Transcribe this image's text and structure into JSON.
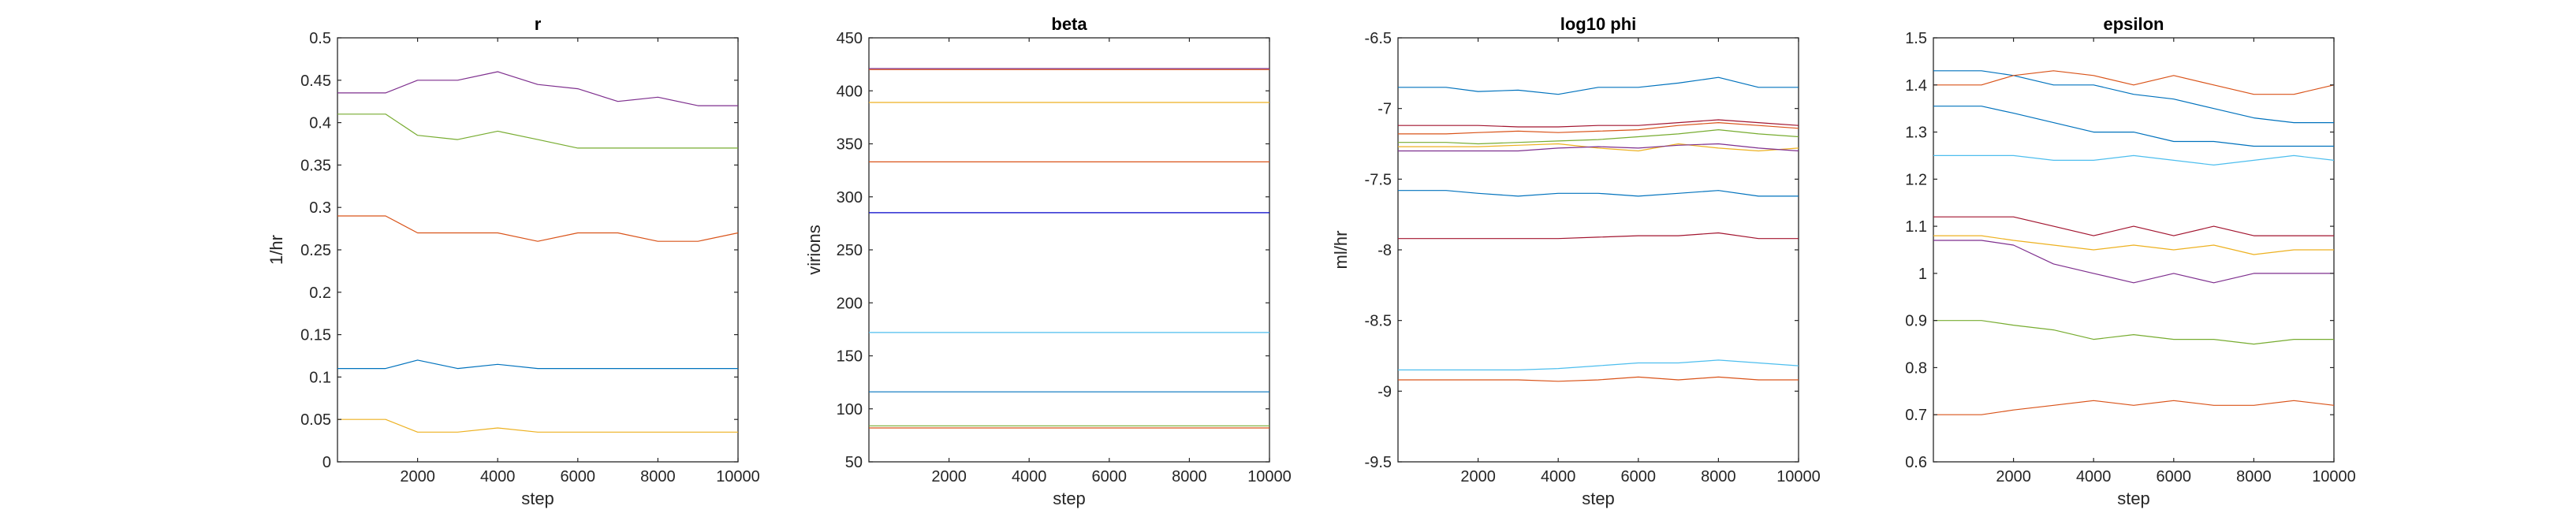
{
  "chart_data": [
    {
      "type": "line",
      "title": "r",
      "xlabel": "step",
      "ylabel": "1/hr",
      "xlim": [
        0,
        10000
      ],
      "ylim": [
        0,
        0.5
      ],
      "xticks": [
        2000,
        4000,
        6000,
        8000,
        10000
      ],
      "yticks": [
        0,
        0.05,
        0.1,
        0.15,
        0.2,
        0.25,
        0.3,
        0.35,
        0.4,
        0.45,
        0.5
      ],
      "xtick_labels": [
        "2000",
        "4000",
        "6000",
        "8000",
        "10000"
      ],
      "ytick_labels": [
        "0",
        "0.05",
        "0.1",
        "0.15",
        "0.2",
        "0.25",
        "0.3",
        "0.35",
        "0.4",
        "0.45",
        "0.5"
      ],
      "series": [
        {
          "color": "#7E2F8E",
          "x": [
            0,
            1200,
            2000,
            3000,
            4000,
            5000,
            6000,
            7000,
            8000,
            9000,
            10000
          ],
          "y": [
            0.435,
            0.435,
            0.45,
            0.45,
            0.46,
            0.445,
            0.44,
            0.425,
            0.43,
            0.42,
            0.42
          ]
        },
        {
          "color": "#77AC30",
          "x": [
            0,
            1200,
            2000,
            3000,
            4000,
            5000,
            6000,
            7000,
            8000,
            9000,
            10000
          ],
          "y": [
            0.41,
            0.41,
            0.385,
            0.38,
            0.39,
            0.38,
            0.37,
            0.37,
            0.37,
            0.37,
            0.37
          ]
        },
        {
          "color": "#D95319",
          "x": [
            0,
            1200,
            2000,
            3000,
            4000,
            5000,
            6000,
            7000,
            8000,
            9000,
            10000
          ],
          "y": [
            0.29,
            0.29,
            0.27,
            0.27,
            0.27,
            0.26,
            0.27,
            0.27,
            0.26,
            0.26,
            0.27
          ]
        },
        {
          "color": "#0072BD",
          "x": [
            0,
            1200,
            2000,
            3000,
            4000,
            5000,
            6000,
            7000,
            8000,
            9000,
            10000
          ],
          "y": [
            0.11,
            0.11,
            0.12,
            0.11,
            0.115,
            0.11,
            0.11,
            0.11,
            0.11,
            0.11,
            0.11
          ]
        },
        {
          "color": "#EDB120",
          "x": [
            0,
            1200,
            2000,
            3000,
            4000,
            5000,
            6000,
            7000,
            8000,
            9000,
            10000
          ],
          "y": [
            0.05,
            0.05,
            0.035,
            0.035,
            0.04,
            0.035,
            0.035,
            0.035,
            0.035,
            0.035,
            0.035
          ]
        }
      ]
    },
    {
      "type": "line",
      "title": "beta",
      "xlabel": "step",
      "ylabel": "virions",
      "xlim": [
        0,
        10000
      ],
      "ylim": [
        50,
        450
      ],
      "xticks": [
        2000,
        4000,
        6000,
        8000,
        10000
      ],
      "yticks": [
        50,
        100,
        150,
        200,
        250,
        300,
        350,
        400,
        450
      ],
      "xtick_labels": [
        "2000",
        "4000",
        "6000",
        "8000",
        "10000"
      ],
      "ytick_labels": [
        "50",
        "100",
        "150",
        "200",
        "250",
        "300",
        "350",
        "400",
        "450"
      ],
      "series": [
        {
          "color": "#7E2F8E",
          "x": [
            0,
            10000
          ],
          "y": [
            421,
            421
          ]
        },
        {
          "color": "#D95319",
          "x": [
            0,
            10000
          ],
          "y": [
            420,
            420
          ]
        },
        {
          "color": "#EDB120",
          "x": [
            0,
            10000
          ],
          "y": [
            389,
            389
          ]
        },
        {
          "color": "#D95319",
          "x": [
            0,
            10000
          ],
          "y": [
            333,
            333
          ]
        },
        {
          "color": "#0000C8",
          "x": [
            0,
            10000
          ],
          "y": [
            285,
            285
          ]
        },
        {
          "color": "#4DBEEE",
          "x": [
            0,
            10000
          ],
          "y": [
            172,
            172
          ]
        },
        {
          "color": "#0072BD",
          "x": [
            0,
            10000
          ],
          "y": [
            116,
            116
          ]
        },
        {
          "color": "#77AC30",
          "x": [
            0,
            10000
          ],
          "y": [
            84,
            84
          ]
        },
        {
          "color": "#D95319",
          "x": [
            0,
            10000
          ],
          "y": [
            82,
            82
          ]
        }
      ]
    },
    {
      "type": "line",
      "title": "log10 phi",
      "xlabel": "step",
      "ylabel": "ml/hr",
      "xlim": [
        0,
        10000
      ],
      "ylim": [
        -9.5,
        -6.5
      ],
      "xticks": [
        2000,
        4000,
        6000,
        8000,
        10000
      ],
      "yticks": [
        -9.5,
        -9,
        -8.5,
        -8,
        -7.5,
        -7,
        -6.5
      ],
      "xtick_labels": [
        "2000",
        "4000",
        "6000",
        "8000",
        "10000"
      ],
      "ytick_labels": [
        "-9.5",
        "-9",
        "-8.5",
        "-8",
        "-7.5",
        "-7",
        "-6.5"
      ],
      "series": [
        {
          "color": "#0072BD",
          "x": [
            0,
            1200,
            2000,
            3000,
            4000,
            5000,
            6000,
            7000,
            8000,
            9000,
            10000
          ],
          "y": [
            -6.85,
            -6.85,
            -6.88,
            -6.87,
            -6.9,
            -6.85,
            -6.85,
            -6.82,
            -6.78,
            -6.85,
            -6.85
          ]
        },
        {
          "color": "#A2142F",
          "x": [
            0,
            1200,
            2000,
            3000,
            4000,
            5000,
            6000,
            7000,
            8000,
            9000,
            10000
          ],
          "y": [
            -7.12,
            -7.12,
            -7.12,
            -7.13,
            -7.13,
            -7.12,
            -7.12,
            -7.1,
            -7.08,
            -7.1,
            -7.12
          ]
        },
        {
          "color": "#D95319",
          "x": [
            0,
            1200,
            2000,
            3000,
            4000,
            5000,
            6000,
            7000,
            8000,
            9000,
            10000
          ],
          "y": [
            -7.18,
            -7.18,
            -7.17,
            -7.16,
            -7.17,
            -7.16,
            -7.15,
            -7.12,
            -7.1,
            -7.12,
            -7.14
          ]
        },
        {
          "color": "#77AC30",
          "x": [
            0,
            1200,
            2000,
            3000,
            4000,
            5000,
            6000,
            7000,
            8000,
            9000,
            10000
          ],
          "y": [
            -7.24,
            -7.24,
            -7.25,
            -7.24,
            -7.23,
            -7.22,
            -7.2,
            -7.18,
            -7.15,
            -7.18,
            -7.2
          ]
        },
        {
          "color": "#EDB120",
          "x": [
            0,
            1200,
            2000,
            3000,
            4000,
            5000,
            6000,
            7000,
            8000,
            9000,
            10000
          ],
          "y": [
            -7.27,
            -7.27,
            -7.27,
            -7.26,
            -7.25,
            -7.28,
            -7.3,
            -7.25,
            -7.28,
            -7.3,
            -7.28
          ]
        },
        {
          "color": "#7E2F8E",
          "x": [
            0,
            1200,
            2000,
            3000,
            4000,
            5000,
            6000,
            7000,
            8000,
            9000,
            10000
          ],
          "y": [
            -7.3,
            -7.3,
            -7.3,
            -7.3,
            -7.28,
            -7.27,
            -7.28,
            -7.26,
            -7.25,
            -7.28,
            -7.3
          ]
        },
        {
          "color": "#0072BD",
          "x": [
            0,
            1200,
            2000,
            3000,
            4000,
            5000,
            6000,
            7000,
            8000,
            9000,
            10000
          ],
          "y": [
            -7.58,
            -7.58,
            -7.6,
            -7.62,
            -7.6,
            -7.6,
            -7.62,
            -7.6,
            -7.58,
            -7.62,
            -7.62
          ]
        },
        {
          "color": "#A2142F",
          "x": [
            0,
            1200,
            2000,
            3000,
            4000,
            5000,
            6000,
            7000,
            8000,
            9000,
            10000
          ],
          "y": [
            -7.92,
            -7.92,
            -7.92,
            -7.92,
            -7.92,
            -7.91,
            -7.9,
            -7.9,
            -7.88,
            -7.92,
            -7.92
          ]
        },
        {
          "color": "#4DBEEE",
          "x": [
            0,
            1200,
            2000,
            3000,
            4000,
            5000,
            6000,
            7000,
            8000,
            9000,
            10000
          ],
          "y": [
            -8.85,
            -8.85,
            -8.85,
            -8.85,
            -8.84,
            -8.82,
            -8.8,
            -8.8,
            -8.78,
            -8.8,
            -8.82
          ]
        },
        {
          "color": "#D95319",
          "x": [
            0,
            1200,
            2000,
            3000,
            4000,
            5000,
            6000,
            7000,
            8000,
            9000,
            10000
          ],
          "y": [
            -8.92,
            -8.92,
            -8.92,
            -8.92,
            -8.93,
            -8.92,
            -8.9,
            -8.92,
            -8.9,
            -8.92,
            -8.92
          ]
        }
      ]
    },
    {
      "type": "line",
      "title": "epsilon",
      "xlabel": "step",
      "ylabel": "",
      "xlim": [
        0,
        10000
      ],
      "ylim": [
        0.6,
        1.5
      ],
      "xticks": [
        2000,
        4000,
        6000,
        8000,
        10000
      ],
      "yticks": [
        0.6,
        0.7,
        0.8,
        0.9,
        1,
        1.1,
        1.2,
        1.3,
        1.4,
        1.5
      ],
      "xtick_labels": [
        "2000",
        "4000",
        "6000",
        "8000",
        "10000"
      ],
      "ytick_labels": [
        "0.6",
        "0.7",
        "0.8",
        "0.9",
        "1",
        "1.1",
        "1.2",
        "1.3",
        "1.4",
        "1.5"
      ],
      "series": [
        {
          "color": "#0072BD",
          "x": [
            0,
            1200,
            2000,
            3000,
            4000,
            5000,
            6000,
            7000,
            8000,
            9000,
            10000
          ],
          "y": [
            1.43,
            1.43,
            1.42,
            1.4,
            1.4,
            1.38,
            1.37,
            1.35,
            1.33,
            1.32,
            1.32
          ]
        },
        {
          "color": "#D95319",
          "x": [
            0,
            1200,
            2000,
            3000,
            4000,
            5000,
            6000,
            7000,
            8000,
            9000,
            10000
          ],
          "y": [
            1.4,
            1.4,
            1.42,
            1.43,
            1.42,
            1.4,
            1.42,
            1.4,
            1.38,
            1.38,
            1.4
          ]
        },
        {
          "color": "#0072BD",
          "x": [
            0,
            1200,
            2000,
            3000,
            4000,
            5000,
            6000,
            7000,
            8000,
            9000,
            10000
          ],
          "y": [
            1.355,
            1.355,
            1.34,
            1.32,
            1.3,
            1.3,
            1.28,
            1.28,
            1.27,
            1.27,
            1.27
          ]
        },
        {
          "color": "#4DBEEE",
          "x": [
            0,
            1200,
            2000,
            3000,
            4000,
            5000,
            6000,
            7000,
            8000,
            9000,
            10000
          ],
          "y": [
            1.25,
            1.25,
            1.25,
            1.24,
            1.24,
            1.25,
            1.24,
            1.23,
            1.24,
            1.25,
            1.24
          ]
        },
        {
          "color": "#A2142F",
          "x": [
            0,
            1200,
            2000,
            3000,
            4000,
            5000,
            6000,
            7000,
            8000,
            9000,
            10000
          ],
          "y": [
            1.12,
            1.12,
            1.12,
            1.1,
            1.08,
            1.1,
            1.08,
            1.1,
            1.08,
            1.08,
            1.08
          ]
        },
        {
          "color": "#EDB120",
          "x": [
            0,
            1200,
            2000,
            3000,
            4000,
            5000,
            6000,
            7000,
            8000,
            9000,
            10000
          ],
          "y": [
            1.08,
            1.08,
            1.07,
            1.06,
            1.05,
            1.06,
            1.05,
            1.06,
            1.04,
            1.05,
            1.05
          ]
        },
        {
          "color": "#7E2F8E",
          "x": [
            0,
            1200,
            2000,
            3000,
            4000,
            5000,
            6000,
            7000,
            8000,
            9000,
            10000
          ],
          "y": [
            1.07,
            1.07,
            1.06,
            1.02,
            1.0,
            0.98,
            1.0,
            0.98,
            1.0,
            1.0,
            1.0
          ]
        },
        {
          "color": "#77AC30",
          "x": [
            0,
            1200,
            2000,
            3000,
            4000,
            5000,
            6000,
            7000,
            8000,
            9000,
            10000
          ],
          "y": [
            0.9,
            0.9,
            0.89,
            0.88,
            0.86,
            0.87,
            0.86,
            0.86,
            0.85,
            0.86,
            0.86
          ]
        },
        {
          "color": "#D95319",
          "x": [
            0,
            1200,
            2000,
            3000,
            4000,
            5000,
            6000,
            7000,
            8000,
            9000,
            10000
          ],
          "y": [
            0.7,
            0.7,
            0.71,
            0.72,
            0.73,
            0.72,
            0.73,
            0.72,
            0.72,
            0.73,
            0.72
          ]
        }
      ]
    }
  ]
}
